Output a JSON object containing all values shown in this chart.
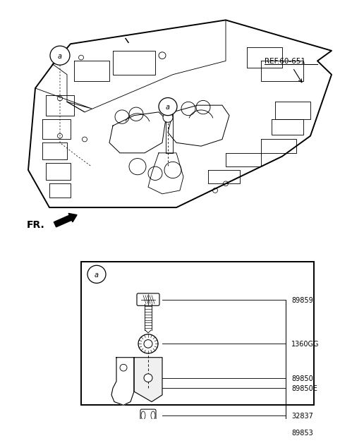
{
  "bg_color": "#ffffff",
  "line_color": "#000000",
  "ref_label": "REF.60-651",
  "fr_label": "FR.",
  "label_a": "a",
  "part_labels": [
    "89859",
    "1360GG",
    "89850",
    "89850E",
    "32837",
    "89853"
  ]
}
